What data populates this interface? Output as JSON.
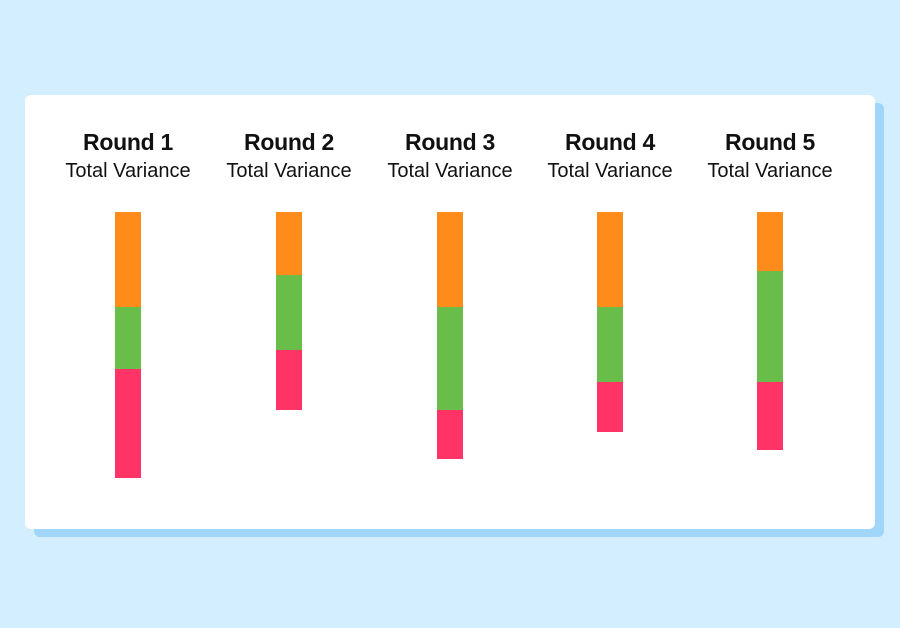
{
  "colors": {
    "background": "#d3eefe",
    "card": "#ffffff",
    "card_shadow": "#9fd6fa",
    "segment_top": "#ff8c1a",
    "segment_middle": "#69be4a",
    "segment_bottom": "#ff3366"
  },
  "chart_data": {
    "type": "bar",
    "stacked": true,
    "subtitle": "Total Variance",
    "categories": [
      "Round 1",
      "Round 2",
      "Round 3",
      "Round 4",
      "Round 5"
    ],
    "series": [
      {
        "color": "#ff8c1a",
        "values": [
          95,
          63,
          95,
          95,
          59
        ]
      },
      {
        "color": "#69be4a",
        "values": [
          62,
          75,
          103,
          75,
          111
        ]
      },
      {
        "color": "#ff3366",
        "values": [
          109,
          60,
          49,
          50,
          68
        ]
      }
    ],
    "xlabel": "",
    "ylabel": "",
    "grid": false,
    "legend": "none"
  }
}
